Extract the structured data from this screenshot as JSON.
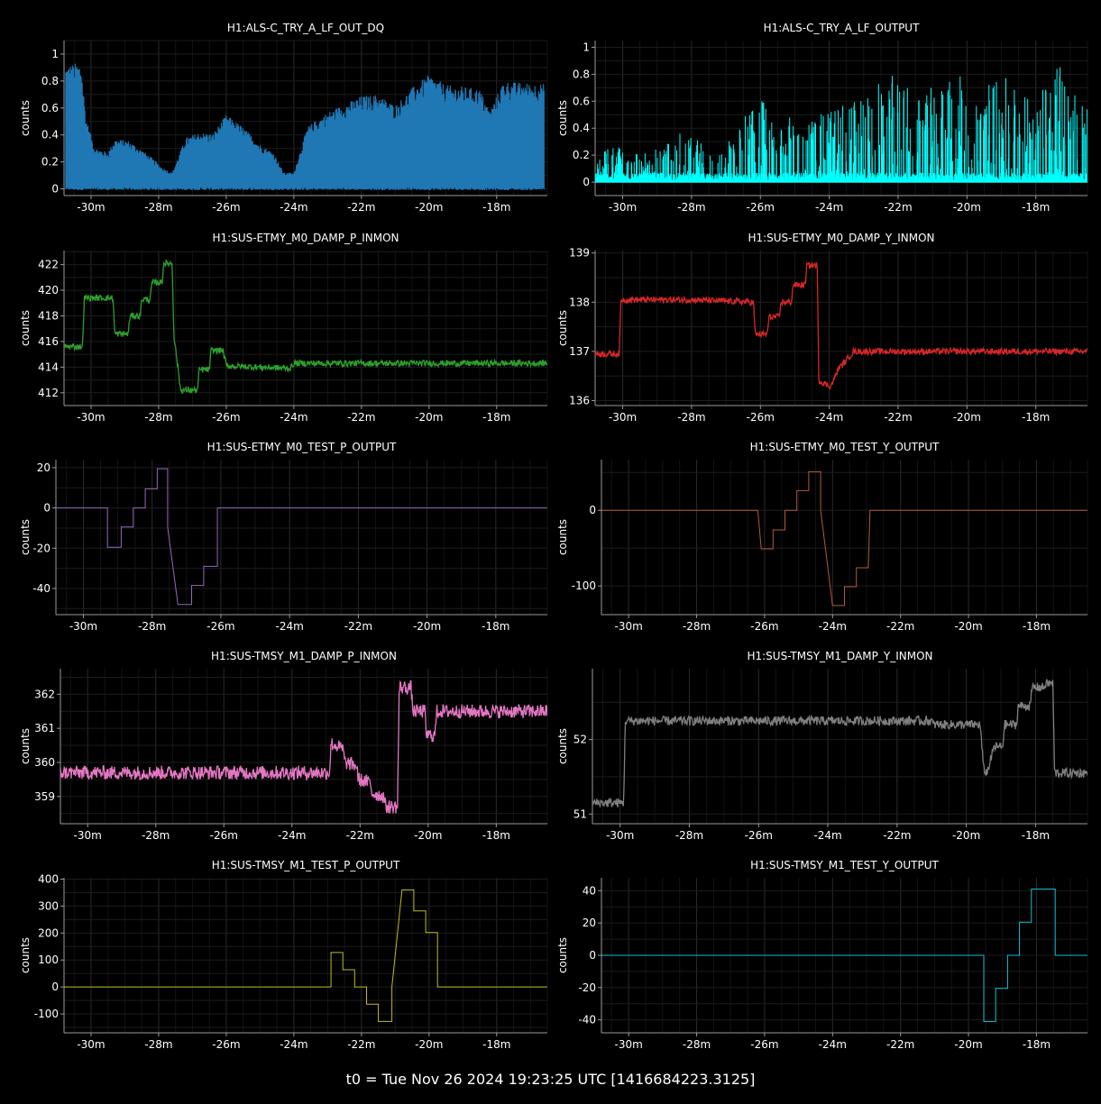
{
  "footer": "t0 = Tue Nov 26 2024 19:23:25 UTC [1416684223.3125]",
  "colors": {
    "background": "#000000",
    "grid": "#1f1f1f",
    "axis": "#9a9a9a",
    "text": "#ffffff"
  },
  "chart_data": [
    {
      "type": "area",
      "title": "H1:ALS-C_TRY_A_LF_OUT_DQ",
      "xlabel": "",
      "ylabel": "counts",
      "color": "#1f77b4",
      "xlim": [
        -30.8,
        -16.5
      ],
      "ylim": [
        -0.05,
        1.1
      ],
      "xticks": [
        -30,
        -28,
        -26,
        -24,
        -22,
        -20,
        -18
      ],
      "xticklabels": [
        "-30m",
        "-28m",
        "-26m",
        "-24m",
        "-22m",
        "-20m",
        "-18m"
      ],
      "yticks": [
        0,
        0.2,
        0.4,
        0.6,
        0.8,
        1
      ],
      "yticklabels": [
        "0",
        "0.2",
        "0.4",
        "0.6",
        "0.8",
        "1"
      ],
      "grid": true,
      "x": [
        -30.75,
        -30.3,
        -30.15,
        -29.9,
        -29.5,
        -29.3,
        -28.9,
        -28.5,
        -28.2,
        -27.9,
        -27.6,
        -27.2,
        -26.8,
        -26.4,
        -26.0,
        -25.5,
        -25.0,
        -24.6,
        -24.3,
        -24.0,
        -23.6,
        -23.0,
        -22.5,
        -22.0,
        -21.5,
        -21.0,
        -20.5,
        -20.0,
        -19.5,
        -19.0,
        -18.5,
        -18.2,
        -17.8,
        -17.3,
        -16.6
      ],
      "y": [
        0.92,
        0.94,
        0.53,
        0.31,
        0.27,
        0.37,
        0.36,
        0.29,
        0.23,
        0.16,
        0.12,
        0.38,
        0.42,
        0.41,
        0.55,
        0.46,
        0.33,
        0.27,
        0.12,
        0.12,
        0.46,
        0.57,
        0.63,
        0.69,
        0.7,
        0.62,
        0.75,
        0.85,
        0.77,
        0.76,
        0.74,
        0.58,
        0.8,
        0.79,
        0.78
      ]
    },
    {
      "type": "line",
      "title": "H1:ALS-C_TRY_A_LF_OUTPUT",
      "xlabel": "",
      "ylabel": "counts",
      "color": "#00ffff",
      "xlim": [
        -30.8,
        -16.5
      ],
      "ylim": [
        -0.1,
        1.05
      ],
      "xticks": [
        -30,
        -28,
        -26,
        -24,
        -22,
        -20,
        -18
      ],
      "xticklabels": [
        "-30m",
        "-28m",
        "-26m",
        "-24m",
        "-22m",
        "-20m",
        "-18m"
      ],
      "yticks": [
        0,
        0.2,
        0.4,
        0.6,
        0.8,
        1
      ],
      "yticklabels": [
        "0",
        "0.2",
        "0.4",
        "0.6",
        "0.8",
        "1"
      ],
      "grid": true,
      "x": [
        -30.8,
        -30.3,
        -29.8,
        -29.3,
        -28.8,
        -28.3,
        -27.8,
        -27.3,
        -26.8,
        -26.3,
        -25.8,
        -25.3,
        -24.8,
        -24.3,
        -23.8,
        -23.3,
        -22.8,
        -22.3,
        -21.8,
        -21.3,
        -20.8,
        -20.3,
        -19.8,
        -19.3,
        -18.8,
        -18.3,
        -17.8,
        -17.3,
        -16.8,
        -16.5
      ],
      "y": [
        0.15,
        0.25,
        0.2,
        0.18,
        0.22,
        0.3,
        0.25,
        0.15,
        0.3,
        0.45,
        0.5,
        0.4,
        0.35,
        0.4,
        0.45,
        0.5,
        0.55,
        0.65,
        0.6,
        0.55,
        0.6,
        0.65,
        0.55,
        0.6,
        0.65,
        0.55,
        0.6,
        0.7,
        0.65,
        0.6
      ]
    },
    {
      "type": "line",
      "title": "H1:SUS-ETMY_M0_DAMP_P_INMON",
      "xlabel": "",
      "ylabel": "counts",
      "color": "#2ca02c",
      "xlim": [
        -30.8,
        -16.5
      ],
      "ylim": [
        411.0,
        423.1
      ],
      "xticks": [
        -30,
        -28,
        -26,
        -24,
        -22,
        -20,
        -18
      ],
      "xticklabels": [
        "-30m",
        "-28m",
        "-26m",
        "-24m",
        "-22m",
        "-20m",
        "-18m"
      ],
      "yticks": [
        412,
        414,
        416,
        418,
        420,
        422
      ],
      "yticklabels": [
        "412",
        "414",
        "416",
        "418",
        "420",
        "422"
      ],
      "grid": true,
      "x": [
        -30.8,
        -30.25,
        -30.2,
        -29.35,
        -29.3,
        -28.9,
        -28.85,
        -28.55,
        -28.5,
        -28.25,
        -28.2,
        -27.9,
        -27.85,
        -27.6,
        -27.55,
        -27.35,
        -27.3,
        -27.2,
        -26.85,
        -26.8,
        -26.5,
        -26.45,
        -26.1,
        -26.0,
        -24.1,
        -24.0,
        -16.5
      ],
      "y": [
        415.6,
        415.6,
        419.4,
        419.4,
        416.6,
        416.6,
        418.0,
        418.0,
        419.3,
        419.3,
        420.6,
        420.6,
        422.1,
        422.1,
        416.5,
        412.2,
        412.2,
        412.2,
        412.2,
        413.8,
        413.8,
        415.3,
        415.3,
        414.1,
        413.9,
        414.3,
        414.3
      ]
    },
    {
      "type": "line",
      "title": "H1:SUS-ETMY_M0_DAMP_Y_INMON",
      "xlabel": "",
      "ylabel": "counts",
      "color": "#d62728",
      "xlim": [
        -30.8,
        -16.5
      ],
      "ylim": [
        135.9,
        139.05
      ],
      "xticks": [
        -30,
        -28,
        -26,
        -24,
        -22,
        -20,
        -18
      ],
      "xticklabels": [
        "-30m",
        "-28m",
        "-26m",
        "-24m",
        "-22m",
        "-20m",
        "-18m"
      ],
      "yticks": [
        136,
        137,
        138,
        139
      ],
      "yticklabels": [
        "136",
        "137",
        "138",
        "139"
      ],
      "grid": true,
      "x": [
        -30.8,
        -30.1,
        -30.05,
        -28.0,
        -26.2,
        -26.15,
        -25.8,
        -25.75,
        -25.45,
        -25.4,
        -25.1,
        -25.05,
        -24.7,
        -24.65,
        -24.35,
        -24.3,
        -24.0,
        -23.95,
        -23.7,
        -23.65,
        -23.35,
        -23.3,
        -16.5
      ],
      "y": [
        136.95,
        136.95,
        138.05,
        138.05,
        138.0,
        137.35,
        137.35,
        137.7,
        137.7,
        138.0,
        138.0,
        138.35,
        138.35,
        138.75,
        138.75,
        136.4,
        136.3,
        136.3,
        136.7,
        136.7,
        136.95,
        137.0,
        137.0
      ]
    },
    {
      "type": "line",
      "title": "H1:SUS-ETMY_M0_TEST_P_OUTPUT",
      "xlabel": "",
      "ylabel": "counts",
      "color": "#9467bd",
      "xlim": [
        -30.8,
        -16.5
      ],
      "ylim": [
        -53,
        24
      ],
      "xticks": [
        -30,
        -28,
        -26,
        -24,
        -22,
        -20,
        -18
      ],
      "xticklabels": [
        "-30m",
        "-28m",
        "-26m",
        "-24m",
        "-22m",
        "-20m",
        "-18m"
      ],
      "yticks": [
        -40,
        -20,
        0,
        20
      ],
      "yticklabels": [
        "-40",
        "-20",
        "0",
        "20"
      ],
      "grid": true,
      "x": [
        -30.8,
        -29.3,
        -29.3,
        -28.9,
        -28.9,
        -28.55,
        -28.55,
        -28.2,
        -28.2,
        -27.85,
        -27.85,
        -27.55,
        -27.55,
        -27.25,
        -27.25,
        -26.85,
        -26.85,
        -26.5,
        -26.5,
        -26.1,
        -26.1,
        -16.5
      ],
      "y": [
        0,
        0,
        -19.5,
        -19.5,
        -9.5,
        -9.5,
        0,
        0,
        9.5,
        9.5,
        19.5,
        19.5,
        -9.5,
        -48,
        -48,
        -48,
        -38.5,
        -38.5,
        -29,
        -29,
        0,
        0
      ]
    },
    {
      "type": "line",
      "title": "H1:SUS-ETMY_M0_TEST_Y_OUTPUT",
      "xlabel": "",
      "ylabel": "counts",
      "color": "#b35a3a",
      "xlim": [
        -30.8,
        -16.5
      ],
      "ylim": [
        -138,
        67
      ],
      "xticks": [
        -30,
        -28,
        -26,
        -24,
        -22,
        -20,
        -18
      ],
      "xticklabels": [
        "-30m",
        "-28m",
        "-26m",
        "-24m",
        "-22m",
        "-20m",
        "-18m"
      ],
      "yticks": [
        -100,
        0
      ],
      "yticklabels": [
        "-100",
        "0"
      ],
      "grid": true,
      "x": [
        -30.8,
        -26.2,
        -26.1,
        -25.75,
        -25.75,
        -25.4,
        -25.4,
        -25.05,
        -25.05,
        -24.7,
        -24.7,
        -24.35,
        -24.35,
        -24.0,
        -24.0,
        -23.65,
        -23.65,
        -23.3,
        -23.3,
        -22.95,
        -22.9,
        -16.5
      ],
      "y": [
        0,
        0,
        -51,
        -51,
        -26,
        -26,
        0,
        0,
        26,
        26,
        51,
        51,
        0,
        -126,
        -126,
        -126,
        -101,
        -101,
        -76,
        -76,
        0,
        0
      ]
    },
    {
      "type": "line",
      "title": "H1:SUS-TMSY_M1_DAMP_P_INMON",
      "xlabel": "",
      "ylabel": "counts",
      "color": "#e377c2",
      "xlim": [
        -30.8,
        -16.5
      ],
      "ylim": [
        358.2,
        362.75
      ],
      "xticks": [
        -30,
        -28,
        -26,
        -24,
        -22,
        -20,
        -18
      ],
      "xticklabels": [
        "-30m",
        "-28m",
        "-26m",
        "-24m",
        "-22m",
        "-20m",
        "-18m"
      ],
      "yticks": [
        359,
        360,
        361,
        362
      ],
      "yticklabels": [
        "359",
        "360",
        "361",
        "362"
      ],
      "grid": true,
      "x": [
        -30.8,
        -22.9,
        -22.85,
        -22.5,
        -22.45,
        -22.1,
        -22.05,
        -21.7,
        -21.65,
        -21.3,
        -21.25,
        -20.9,
        -20.85,
        -20.5,
        -20.45,
        -20.1,
        -20.05,
        -19.8,
        -19.75,
        -16.5
      ],
      "y": [
        359.7,
        359.7,
        360.55,
        360.4,
        360.0,
        359.9,
        359.5,
        359.4,
        359.1,
        359.0,
        358.7,
        358.7,
        362.2,
        362.2,
        361.5,
        361.5,
        360.8,
        360.8,
        361.5,
        361.5
      ]
    },
    {
      "type": "line",
      "title": "H1:SUS-TMSY_M1_DAMP_Y_INMON",
      "xlabel": "",
      "ylabel": "counts",
      "color": "#7f7f7f",
      "xlim": [
        -30.8,
        -16.5
      ],
      "ylim": [
        50.87,
        52.95
      ],
      "xticks": [
        -30,
        -28,
        -26,
        -24,
        -22,
        -20,
        -18
      ],
      "xticklabels": [
        "-30m",
        "-28m",
        "-26m",
        "-24m",
        "-22m",
        "-20m",
        "-18m"
      ],
      "yticks": [
        51,
        52
      ],
      "yticklabels": [
        "51",
        "52"
      ],
      "grid": true,
      "x": [
        -30.8,
        -29.9,
        -29.85,
        -21.0,
        -20.95,
        -19.6,
        -19.5,
        -19.4,
        -19.2,
        -18.95,
        -18.9,
        -18.55,
        -18.5,
        -18.15,
        -18.1,
        -17.75,
        -17.7,
        -17.5,
        -17.45,
        -16.5
      ],
      "y": [
        51.15,
        51.15,
        52.25,
        52.25,
        52.2,
        52.2,
        51.6,
        51.55,
        51.9,
        51.9,
        52.2,
        52.2,
        52.45,
        52.45,
        52.7,
        52.7,
        52.75,
        52.75,
        51.55,
        51.55
      ]
    },
    {
      "type": "line",
      "title": "H1:SUS-TMSY_M1_TEST_P_OUTPUT",
      "xlabel": "",
      "ylabel": "counts",
      "color": "#bcbd22",
      "xlim": [
        -30.8,
        -16.5
      ],
      "ylim": [
        -170,
        405
      ],
      "xticks": [
        -30,
        -28,
        -26,
        -24,
        -22,
        -20,
        -18
      ],
      "xticklabels": [
        "-30m",
        "-28m",
        "-26m",
        "-24m",
        "-22m",
        "-20m",
        "-18m"
      ],
      "yticks": [
        -100,
        0,
        100,
        200,
        300,
        400
      ],
      "yticklabels": [
        "-100",
        "0",
        "100",
        "200",
        "300",
        "400"
      ],
      "grid": true,
      "x": [
        -30.8,
        -22.9,
        -22.9,
        -22.55,
        -22.55,
        -22.2,
        -22.2,
        -21.85,
        -21.85,
        -21.5,
        -21.5,
        -21.1,
        -21.1,
        -20.8,
        -20.8,
        -20.45,
        -20.45,
        -20.1,
        -20.1,
        -19.75,
        -19.75,
        -16.5
      ],
      "y": [
        0,
        0,
        128,
        128,
        64,
        64,
        0,
        0,
        -64,
        -64,
        -128,
        -128,
        0,
        360,
        360,
        360,
        282,
        282,
        202,
        202,
        0,
        0
      ]
    },
    {
      "type": "line",
      "title": "H1:SUS-TMSY_M1_TEST_Y_OUTPUT",
      "xlabel": "",
      "ylabel": "counts",
      "color": "#17becf",
      "xlim": [
        -30.8,
        -16.5
      ],
      "ylim": [
        -48,
        48
      ],
      "xticks": [
        -30,
        -28,
        -26,
        -24,
        -22,
        -20,
        -18
      ],
      "xticklabels": [
        "-30m",
        "-28m",
        "-26m",
        "-24m",
        "-22m",
        "-20m",
        "-18m"
      ],
      "yticks": [
        -40,
        -20,
        0,
        20,
        40
      ],
      "yticklabels": [
        "-40",
        "-20",
        "0",
        "20",
        "40"
      ],
      "grid": true,
      "x": [
        -30.8,
        -19.55,
        -19.55,
        -19.2,
        -19.2,
        -18.85,
        -18.85,
        -18.5,
        -18.5,
        -18.15,
        -18.15,
        -17.8,
        -17.8,
        -17.45,
        -17.45,
        -16.5
      ],
      "y": [
        0,
        0,
        -41,
        -41,
        -20.5,
        -20.5,
        0,
        0,
        20.5,
        20.5,
        41,
        41,
        41,
        41,
        0,
        0
      ]
    }
  ]
}
